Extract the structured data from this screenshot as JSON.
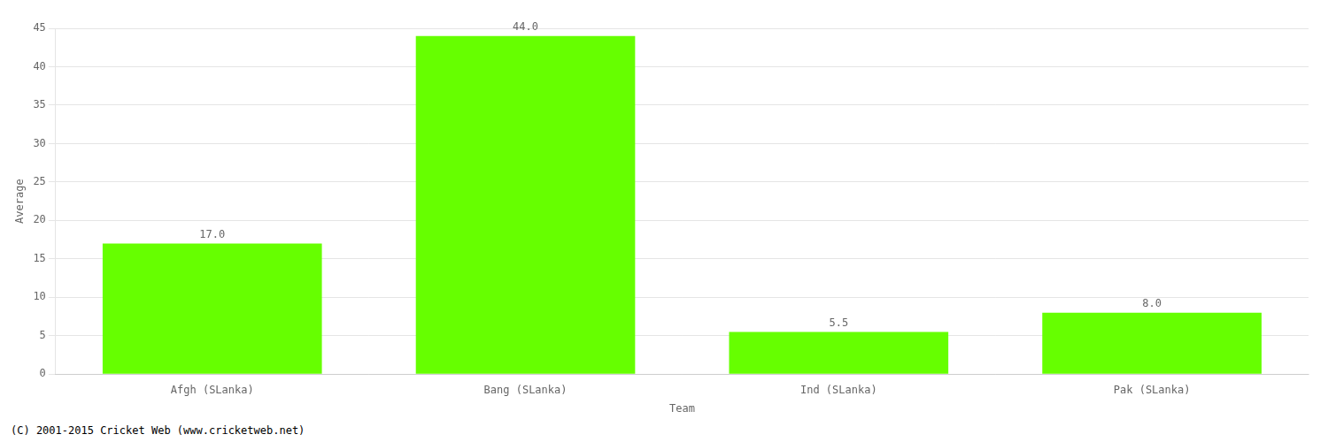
{
  "chart_data": {
    "type": "bar",
    "categories": [
      "Afgh (SLanka)",
      "Bang (SLanka)",
      "Ind (SLanka)",
      "Pak (SLanka)"
    ],
    "values": [
      17.0,
      44.0,
      5.5,
      8.0
    ],
    "value_labels": [
      "17.0",
      "44.0",
      "5.5",
      "8.0"
    ],
    "data_labels": true,
    "color": "#66ff00",
    "xlabel": "Team",
    "ylabel": "Average",
    "ylim": [
      0,
      45
    ],
    "yticks": [
      0,
      5,
      10,
      15,
      20,
      25,
      30,
      35,
      40,
      45
    ],
    "grid": true,
    "annotations": [
      "(C) 2001-2015 Cricket Web (www.cricketweb.net)"
    ]
  }
}
